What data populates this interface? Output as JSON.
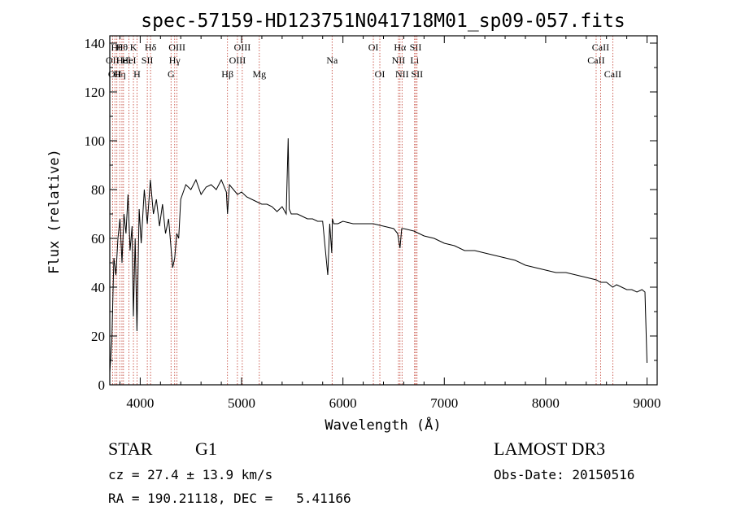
{
  "chart_data": {
    "type": "line",
    "title": "spec-57159-HD123751N041718M01_sp09-057.fits",
    "xlabel": "Wavelength (Å)",
    "ylabel": "Flux (relative)",
    "xlim": [
      3700,
      9100
    ],
    "ylim": [
      0,
      143
    ],
    "xticks": [
      4000,
      5000,
      6000,
      7000,
      8000,
      9000
    ],
    "yticks": [
      0,
      20,
      40,
      60,
      80,
      100,
      120,
      140
    ],
    "grid": false,
    "series": [
      {
        "name": "flux",
        "x": [
          3700,
          3720,
          3740,
          3760,
          3780,
          3800,
          3820,
          3840,
          3860,
          3880,
          3900,
          3920,
          3933,
          3950,
          3968,
          3990,
          4010,
          4040,
          4070,
          4100,
          4130,
          4160,
          4190,
          4220,
          4250,
          4280,
          4300,
          4320,
          4340,
          4360,
          4380,
          4400,
          4450,
          4500,
          4550,
          4600,
          4650,
          4700,
          4750,
          4800,
          4850,
          4861,
          4880,
          4920,
          4960,
          5000,
          5050,
          5100,
          5150,
          5200,
          5250,
          5300,
          5350,
          5400,
          5440,
          5460,
          5470,
          5490,
          5550,
          5600,
          5650,
          5700,
          5750,
          5800,
          5850,
          5870,
          5890,
          5896,
          5910,
          5950,
          6000,
          6100,
          6200,
          6300,
          6400,
          6500,
          6540,
          6563,
          6580,
          6600,
          6700,
          6800,
          6900,
          7000,
          7100,
          7200,
          7300,
          7400,
          7500,
          7600,
          7700,
          7800,
          7900,
          8000,
          8100,
          8200,
          8300,
          8400,
          8500,
          8542,
          8600,
          8662,
          8700,
          8750,
          8800,
          8850,
          8900,
          8950,
          8980,
          9000
        ],
        "y": [
          5,
          18,
          52,
          45,
          60,
          68,
          50,
          70,
          62,
          78,
          55,
          65,
          28,
          60,
          22,
          72,
          58,
          80,
          66,
          84,
          70,
          76,
          65,
          74,
          62,
          68,
          58,
          48,
          52,
          62,
          60,
          76,
          82,
          80,
          84,
          78,
          81,
          82,
          80,
          84,
          79,
          70,
          82,
          80,
          78,
          79,
          77,
          76,
          75,
          74,
          74,
          73,
          71,
          73,
          70,
          101,
          72,
          70,
          70,
          69,
          68,
          68,
          67,
          67,
          45,
          66,
          54,
          68,
          66,
          66,
          67,
          66,
          66,
          66,
          65,
          64,
          62,
          56,
          64,
          64,
          63,
          61,
          60,
          58,
          57,
          55,
          55,
          54,
          53,
          52,
          51,
          49,
          48,
          47,
          46,
          46,
          45,
          44,
          43,
          42,
          42,
          40,
          41,
          40,
          39,
          39,
          38,
          39,
          38,
          9
        ]
      }
    ],
    "line_markers": [
      {
        "wavelength": 3727,
        "label": "OII",
        "row": 2
      },
      {
        "wavelength": 3750,
        "label": "OII",
        "row": 3
      },
      {
        "wavelength": 3770,
        "label": "Hθ",
        "row": 1
      },
      {
        "wavelength": 3798,
        "label": "Hη",
        "row": 3
      },
      {
        "wavelength": 3820,
        "label": "Hθ",
        "row": 1
      },
      {
        "wavelength": 3835,
        "label": "HeI",
        "row": 2
      },
      {
        "wavelength": 3889,
        "label": "HeI",
        "row": 2
      },
      {
        "wavelength": 3933,
        "label": "K",
        "row": 1
      },
      {
        "wavelength": 3968,
        "label": "H",
        "row": 3
      },
      {
        "wavelength": 4070,
        "label": "SII",
        "row": 2
      },
      {
        "wavelength": 4102,
        "label": "Hδ",
        "row": 1
      },
      {
        "wavelength": 4304,
        "label": "G",
        "row": 3
      },
      {
        "wavelength": 4340,
        "label": "Hγ",
        "row": 2
      },
      {
        "wavelength": 4363,
        "label": "OIII",
        "row": 1
      },
      {
        "wavelength": 4861,
        "label": "Hβ",
        "row": 3
      },
      {
        "wavelength": 4959,
        "label": "OIII",
        "row": 2
      },
      {
        "wavelength": 5007,
        "label": "OIII",
        "row": 1
      },
      {
        "wavelength": 5175,
        "label": "Mg",
        "row": 3
      },
      {
        "wavelength": 5893,
        "label": "Na",
        "row": 2
      },
      {
        "wavelength": 6300,
        "label": "OI",
        "row": 1
      },
      {
        "wavelength": 6364,
        "label": "OI",
        "row": 3
      },
      {
        "wavelength": 6548,
        "label": "NII",
        "row": 2
      },
      {
        "wavelength": 6563,
        "label": "Hα",
        "row": 1
      },
      {
        "wavelength": 6583,
        "label": "NII",
        "row": 3
      },
      {
        "wavelength": 6707,
        "label": "Li",
        "row": 2
      },
      {
        "wavelength": 6717,
        "label": "SII",
        "row": 1
      },
      {
        "wavelength": 6731,
        "label": "SII",
        "row": 3
      },
      {
        "wavelength": 8498,
        "label": "CaII",
        "row": 2
      },
      {
        "wavelength": 8542,
        "label": "CaII",
        "row": 1
      },
      {
        "wavelength": 8662,
        "label": "CaII",
        "row": 3
      }
    ]
  },
  "info": {
    "object_class": "STAR",
    "subclass": "G1",
    "survey": "LAMOST DR3",
    "velocity": "cz = 27.4 ± 13.9 km/s",
    "obs_date": "Obs-Date: 20150516",
    "coordinates": "RA = 190.21118, DEC =   5.41166"
  },
  "colors": {
    "axis": "#000000",
    "spectrum": "#000000",
    "marker_line": "#c0392b"
  }
}
